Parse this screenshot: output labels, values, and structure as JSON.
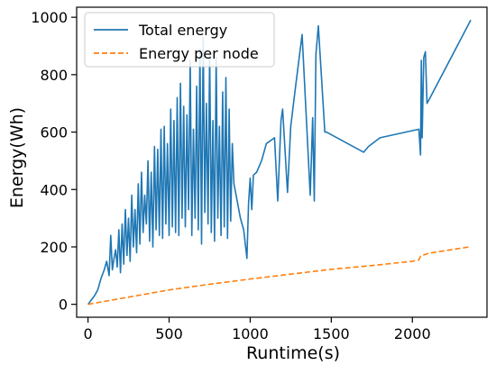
{
  "chart_data": {
    "type": "line",
    "title": "",
    "xlabel": "Runtime(s)",
    "ylabel": "Energy(Wh)",
    "xlim": [
      -70,
      2460
    ],
    "ylim": [
      -45,
      1035
    ],
    "xticks": [
      0,
      500,
      1000,
      1500,
      2000
    ],
    "yticks": [
      0,
      200,
      400,
      600,
      800,
      1000
    ],
    "grid": false,
    "legend": "top-left",
    "series": [
      {
        "name": "Total energy",
        "color": "#1f77b4",
        "style": "solid",
        "x": [
          0,
          20,
          40,
          60,
          80,
          100,
          115,
          130,
          140,
          150,
          160,
          170,
          180,
          190,
          200,
          210,
          220,
          230,
          240,
          250,
          260,
          270,
          280,
          290,
          300,
          310,
          320,
          330,
          340,
          350,
          360,
          370,
          380,
          390,
          400,
          410,
          420,
          430,
          440,
          450,
          460,
          470,
          480,
          490,
          500,
          510,
          520,
          530,
          540,
          550,
          560,
          570,
          580,
          590,
          600,
          610,
          620,
          630,
          640,
          650,
          660,
          670,
          680,
          690,
          700,
          710,
          720,
          730,
          740,
          750,
          760,
          770,
          780,
          790,
          800,
          810,
          820,
          830,
          840,
          850,
          860,
          870,
          880,
          890,
          900,
          920,
          940,
          960,
          980,
          990,
          1000,
          1010,
          1020,
          1040,
          1070,
          1100,
          1150,
          1170,
          1190,
          1200,
          1230,
          1250,
          1280,
          1320,
          1370,
          1385,
          1395,
          1405,
          1420,
          1460,
          1470,
          1700,
          1730,
          1800,
          2040,
          2050,
          2055,
          2060,
          2070,
          2080,
          2090,
          2100,
          2360
        ],
        "y": [
          0,
          15,
          30,
          50,
          90,
          120,
          150,
          100,
          240,
          120,
          160,
          190,
          130,
          260,
          110,
          280,
          140,
          330,
          170,
          300,
          150,
          380,
          200,
          330,
          180,
          420,
          210,
          460,
          250,
          380,
          280,
          500,
          220,
          460,
          200,
          550,
          260,
          540,
          240,
          610,
          230,
          620,
          280,
          560,
          240,
          680,
          270,
          640,
          250,
          720,
          240,
          770,
          300,
          690,
          270,
          660,
          330,
          850,
          240,
          610,
          300,
          760,
          260,
          890,
          210,
          930,
          320,
          700,
          280,
          880,
          250,
          640,
          220,
          860,
          300,
          620,
          240,
          740,
          270,
          790,
          230,
          680,
          290,
          560,
          420,
          360,
          300,
          260,
          160,
          350,
          440,
          330,
          450,
          460,
          500,
          560,
          580,
          360,
          640,
          680,
          390,
          620,
          760,
          940,
          380,
          650,
          360,
          870,
          970,
          600,
          600,
          530,
          550,
          580,
          610,
          520,
          850,
          580,
          860,
          880,
          700,
          710,
          990
        ]
      },
      {
        "name": "Energy per node",
        "color": "#ff7f0e",
        "style": "dashed",
        "x": [
          0,
          250,
          500,
          750,
          1000,
          1250,
          1500,
          1750,
          2000,
          2040,
          2050,
          2100,
          2350
        ],
        "y": [
          0,
          25,
          50,
          70,
          88,
          105,
          122,
          135,
          150,
          155,
          168,
          178,
          200
        ]
      }
    ]
  }
}
